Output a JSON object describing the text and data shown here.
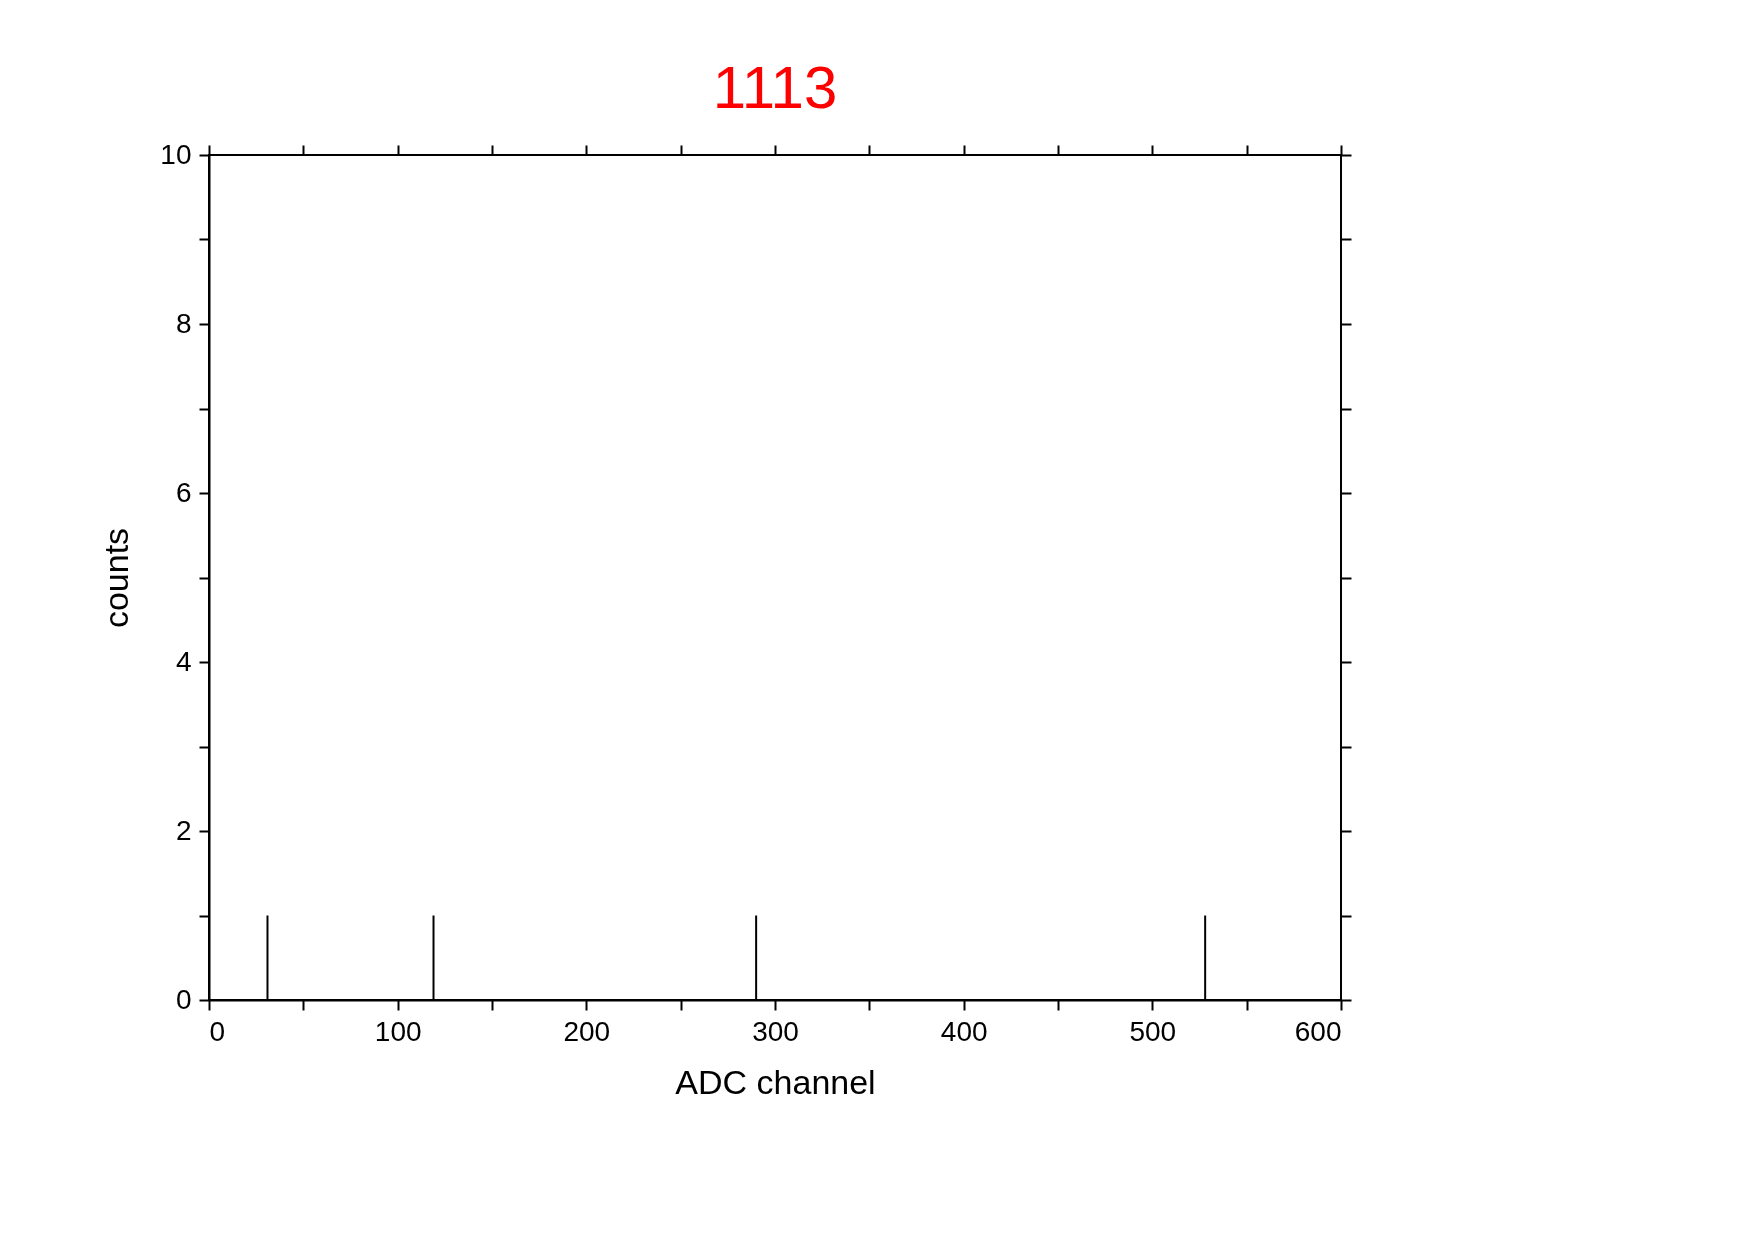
{
  "chart_data": {
    "type": "bar",
    "title": "1113",
    "xlabel": "ADC channel",
    "ylabel": "counts",
    "x": [
      31,
      119,
      290,
      528
    ],
    "series": [
      {
        "color": "#000000",
        "values": [
          1,
          1,
          1,
          1
        ]
      }
    ],
    "xlim": [
      0,
      600
    ],
    "ylim": [
      0,
      10
    ],
    "xticks": [
      0,
      {
        "value": 50,
        "label": null
      },
      100,
      {
        "value": 150,
        "label": null
      },
      200,
      {
        "value": 250,
        "label": null
      },
      300,
      {
        "value": 350,
        "label": null
      },
      400,
      {
        "value": 450,
        "label": null
      },
      500,
      {
        "value": 550,
        "label": null
      },
      600
    ],
    "yticks": [
      0,
      {
        "value": 1,
        "label": null
      },
      2,
      {
        "value": 3,
        "label": null
      },
      4,
      {
        "value": 5,
        "label": null
      },
      6,
      {
        "value": 7,
        "label": null
      },
      8,
      {
        "value": 9,
        "label": null
      },
      10
    ],
    "grid": false
  }
}
